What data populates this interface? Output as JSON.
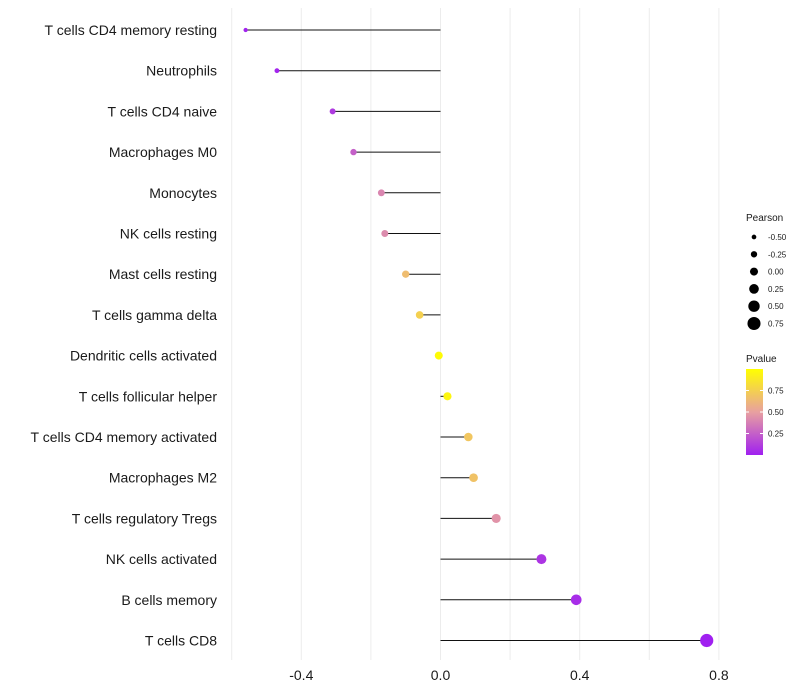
{
  "chart_data": {
    "type": "lollipop",
    "title": "",
    "xlabel": "",
    "ylabel": "",
    "xlim": [
      -0.6,
      0.85
    ],
    "x_ticks": [
      -0.4,
      0.0,
      0.4,
      0.8
    ],
    "x_tick_labels": [
      "-0.4",
      "0.0",
      "0.4",
      "0.8"
    ],
    "baseline": 0.0,
    "grid": true,
    "categories": [
      "T cells CD4 memory resting",
      "Neutrophils",
      "T cells CD4 naive",
      "Macrophages M0",
      "Monocytes",
      "NK cells resting",
      "Mast cells resting",
      "T cells gamma delta",
      "Dendritic cells activated",
      "T cells follicular helper",
      "T cells CD4 memory activated",
      "Macrophages M2",
      "T cells regulatory  Tregs ",
      "NK cells activated",
      "B cells memory",
      "T cells CD8"
    ],
    "pearson": [
      -0.56,
      -0.47,
      -0.31,
      -0.25,
      -0.17,
      -0.16,
      -0.1,
      -0.06,
      -0.005,
      0.02,
      0.08,
      0.095,
      0.16,
      0.29,
      0.39,
      0.765
    ],
    "pvalue": [
      0.01,
      0.02,
      0.1,
      0.25,
      0.4,
      0.42,
      0.65,
      0.75,
      0.98,
      0.95,
      0.7,
      0.68,
      0.45,
      0.08,
      0.05,
      0.001
    ],
    "size_legend": {
      "title": "Pearson",
      "values": [
        -0.5,
        -0.25,
        0.0,
        0.25,
        0.5,
        0.75
      ],
      "labels": [
        "-0.50",
        "-0.25",
        "0.00",
        "0.25",
        "0.50",
        "0.75"
      ]
    },
    "color_legend": {
      "title": "Pvalue",
      "ticks": [
        0.25,
        0.5,
        0.75
      ],
      "tick_labels": [
        "0.25",
        "0.50",
        "0.75"
      ],
      "range": [
        0.0,
        1.0
      ],
      "low_color": "#a020f0",
      "mid_color": "#e8a0a0",
      "high_color": "#ffff00"
    },
    "legend_position": "right"
  }
}
